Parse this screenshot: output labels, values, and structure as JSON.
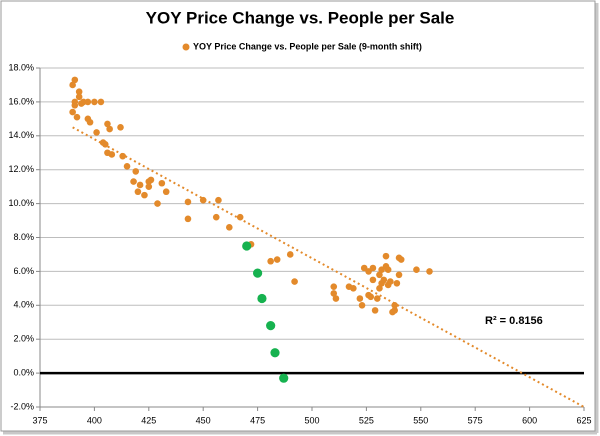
{
  "chart_data": {
    "type": "scatter",
    "title": "YOY Price Change vs. People per Sale",
    "series": [
      {
        "name": "YOY Price Change vs. People per Sale (9-month shift)",
        "color": "#e38a2b",
        "x": [
          390,
          390,
          391,
          391,
          392,
          391,
          393,
          393,
          394,
          395,
          397,
          397,
          398,
          400,
          401,
          403,
          404,
          405,
          406,
          406,
          407,
          408,
          412,
          413,
          415,
          418,
          419,
          420,
          421,
          423,
          425,
          425,
          426,
          429,
          431,
          433,
          443,
          443,
          450,
          456,
          457,
          462,
          467,
          472,
          481,
          484,
          490,
          492,
          510,
          510,
          511,
          517,
          519,
          522,
          523,
          524,
          526,
          526,
          527,
          528,
          528,
          529,
          530,
          531,
          531,
          532,
          532,
          533,
          534,
          534,
          535,
          535,
          536,
          537,
          538,
          538,
          539,
          540,
          540,
          541,
          548,
          554
        ],
        "values": [
          15.4,
          17.0,
          17.3,
          16.0,
          15.1,
          15.8,
          16.6,
          16.3,
          15.9,
          16.0,
          16.0,
          15.0,
          14.8,
          16.0,
          14.2,
          16.0,
          13.6,
          13.5,
          14.7,
          13.0,
          14.4,
          12.9,
          14.5,
          12.8,
          12.2,
          11.3,
          11.9,
          10.7,
          11.1,
          10.5,
          11.3,
          11.0,
          11.4,
          10.0,
          11.2,
          10.7,
          10.1,
          9.1,
          10.2,
          9.2,
          10.2,
          8.6,
          9.2,
          7.6,
          6.6,
          6.7,
          7.0,
          5.4,
          5.1,
          4.7,
          4.4,
          5.1,
          5.0,
          4.4,
          4.0,
          6.2,
          6.0,
          4.6,
          4.5,
          5.5,
          6.2,
          3.7,
          4.4,
          5.0,
          5.8,
          5.3,
          6.1,
          5.5,
          6.3,
          6.9,
          6.1,
          5.2,
          5.4,
          3.6,
          4.0,
          3.7,
          5.3,
          6.8,
          5.8,
          6.7,
          6.1,
          6.0
        ]
      },
      {
        "color": "#16b24f",
        "x": [
          470,
          475,
          477,
          481,
          483,
          487
        ],
        "values": [
          7.5,
          5.9,
          4.4,
          2.8,
          1.2,
          -0.3
        ]
      }
    ],
    "trendline": {
      "x": [
        390,
        625
      ],
      "values": [
        14.5,
        -2.0
      ],
      "color": "#e38a2b",
      "annotation": "R² = 0.8156"
    },
    "xlim": [
      375,
      625
    ],
    "xticks": [
      375,
      400,
      425,
      450,
      475,
      500,
      525,
      550,
      575,
      600,
      625
    ],
    "ylim": [
      -2,
      18
    ],
    "yticks": [
      {
        "value": -2,
        "label": "-2.0%"
      },
      {
        "value": 0,
        "label": "0.0%"
      },
      {
        "value": 2,
        "label": "2.0%"
      },
      {
        "value": 4,
        "label": "4.0%"
      },
      {
        "value": 6,
        "label": "6.0%"
      },
      {
        "value": 8,
        "label": "8.0%"
      },
      {
        "value": 10,
        "label": "10.0%"
      },
      {
        "value": 12,
        "label": "12.0%"
      },
      {
        "value": 14,
        "label": "14.0%"
      },
      {
        "value": 16,
        "label": "16.0%"
      },
      {
        "value": 18,
        "label": "18.0%"
      }
    ],
    "grid": true,
    "zero_line": true
  }
}
